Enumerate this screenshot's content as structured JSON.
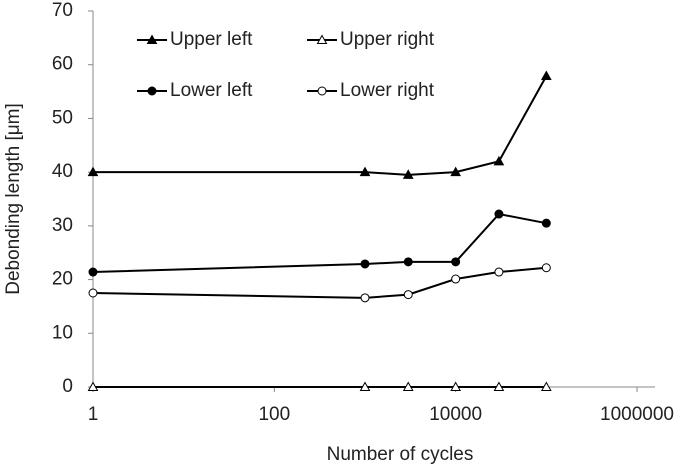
{
  "chart_data": {
    "type": "line",
    "x_label": "Number of cycles",
    "y_label": "Debonding length [μm]",
    "x": [
      1,
      1000,
      3000,
      10000,
      30000,
      100000
    ],
    "xscale": "log",
    "xlim": [
      1,
      1000000
    ],
    "xticks": [
      1,
      100,
      10000,
      1000000
    ],
    "ylim": [
      0,
      70
    ],
    "yticks": [
      0,
      10,
      20,
      30,
      40,
      50,
      60,
      70
    ],
    "grid": false,
    "series": [
      {
        "name": "Upper left",
        "color": "#000000",
        "marker": "triangle",
        "filled": true,
        "values": [
          40,
          40,
          39.5,
          40,
          42,
          57.9
        ]
      },
      {
        "name": "Upper right",
        "color": "#000000",
        "marker": "triangle",
        "filled": false,
        "values": [
          0,
          0,
          0,
          0,
          0,
          0
        ]
      },
      {
        "name": "Lower left",
        "color": "#000000",
        "marker": "circle",
        "filled": true,
        "values": [
          21.4,
          22.9,
          23.3,
          23.3,
          32.2,
          30.5
        ]
      },
      {
        "name": "Lower right",
        "color": "#000000",
        "marker": "circle",
        "filled": false,
        "values": [
          17.5,
          16.6,
          17.2,
          20.1,
          21.4,
          22.2
        ]
      }
    ]
  }
}
